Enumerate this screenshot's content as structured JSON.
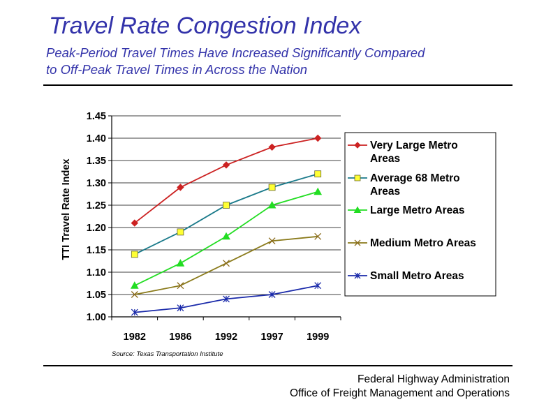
{
  "header": {
    "title": "Travel Rate Congestion Index",
    "subtitle_line1": "Peak-Period Travel Times Have Increased Significantly Compared",
    "subtitle_line2": "to Off-Peak Travel Times in Across the Nation"
  },
  "footer": {
    "line1": "Federal Highway Administration",
    "line2": "Office of Freight Management and Operations"
  },
  "chart_data": {
    "type": "line",
    "title": "",
    "xlabel": "",
    "ylabel": "TTI Travel Rate Index",
    "categories": [
      "1982",
      "1986",
      "1992",
      "1997",
      "1999"
    ],
    "ylim": [
      1.0,
      1.45
    ],
    "yticks": [
      "1.00",
      "1.05",
      "1.10",
      "1.15",
      "1.20",
      "1.25",
      "1.30",
      "1.35",
      "1.40",
      "1.45"
    ],
    "grid": "horizontal",
    "legend_position": "right",
    "source": "Source: Texas Transportation Institute",
    "series": [
      {
        "name_lines": [
          "Very Large Metro",
          "Areas"
        ],
        "values": [
          1.21,
          1.29,
          1.34,
          1.38,
          1.4
        ],
        "color": "#cc2222",
        "marker": "diamond",
        "marker_color": "#cc2222"
      },
      {
        "name_lines": [
          "Average 68 Metro",
          "Areas"
        ],
        "values": [
          1.14,
          1.19,
          1.25,
          1.29,
          1.32
        ],
        "color": "#1a7a8a",
        "marker": "square",
        "marker_color": "#ffff33"
      },
      {
        "name_lines": [
          "Large Metro Areas"
        ],
        "values": [
          1.07,
          1.12,
          1.18,
          1.25,
          1.28
        ],
        "color": "#22dd22",
        "marker": "triangle",
        "marker_color": "#22dd22"
      },
      {
        "name_lines": [
          "Medium Metro Areas"
        ],
        "values": [
          1.05,
          1.07,
          1.12,
          1.17,
          1.18
        ],
        "color": "#8a7a1a",
        "marker": "x",
        "marker_color": "#8a6a1a"
      },
      {
        "name_lines": [
          "Small Metro Areas"
        ],
        "values": [
          1.01,
          1.02,
          1.04,
          1.05,
          1.07
        ],
        "color": "#1a2aaa",
        "marker": "asterisk",
        "marker_color": "#1a2aaa"
      }
    ]
  }
}
